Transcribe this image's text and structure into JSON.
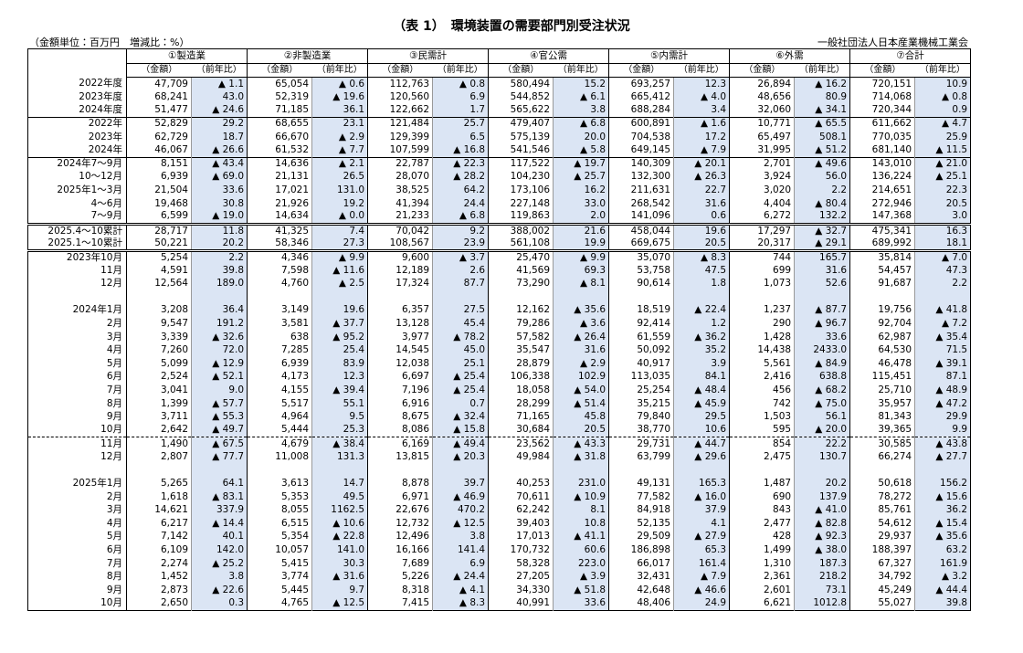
{
  "header": {
    "title": "（表 1）　環境装置の需要部門別受注状況",
    "unit_note": "（金額単位：百万円　増減比：%）",
    "publisher": "一般社団法人日本産業機械工業会"
  },
  "columns": {
    "groups": [
      "①製造業",
      "②非製造業",
      "③民需計",
      "④官公需",
      "⑤内需計",
      "⑥外需",
      "⑦合計"
    ],
    "amount": "（金額）",
    "yoy": "（前年比）"
  },
  "sections": [
    {
      "rows": [
        {
          "label": "2022年度",
          "cells": [
            "47,709",
            "▲ 1.1",
            "65,054",
            "▲ 0.6",
            "112,763",
            "▲ 0.8",
            "580,494",
            "15.2",
            "693,257",
            "12.3",
            "26,894",
            "▲ 16.2",
            "720,151",
            "10.9"
          ]
        },
        {
          "label": "2023年度",
          "cells": [
            "68,241",
            "43.0",
            "52,319",
            "▲ 19.6",
            "120,560",
            "6.9",
            "544,852",
            "▲ 6.1",
            "665,412",
            "▲ 4.0",
            "48,656",
            "80.9",
            "714,068",
            "▲ 0.8"
          ]
        },
        {
          "label": "2024年度",
          "cells": [
            "51,477",
            "▲ 24.6",
            "71,185",
            "36.1",
            "122,662",
            "1.7",
            "565,622",
            "3.8",
            "688,284",
            "3.4",
            "32,060",
            "▲ 34.1",
            "720,344",
            "0.9"
          ]
        }
      ]
    },
    {
      "rows": [
        {
          "label": "2022年",
          "cells": [
            "52,829",
            "29.2",
            "68,655",
            "23.1",
            "121,484",
            "25.7",
            "479,407",
            "▲ 6.8",
            "600,891",
            "▲ 1.6",
            "10,771",
            "▲ 65.5",
            "611,662",
            "▲ 4.7"
          ]
        },
        {
          "label": "2023年",
          "cells": [
            "62,729",
            "18.7",
            "66,670",
            "▲ 2.9",
            "129,399",
            "6.5",
            "575,139",
            "20.0",
            "704,538",
            "17.2",
            "65,497",
            "508.1",
            "770,035",
            "25.9"
          ]
        },
        {
          "label": "2024年",
          "cells": [
            "46,067",
            "▲ 26.6",
            "61,532",
            "▲ 7.7",
            "107,599",
            "▲ 16.8",
            "541,546",
            "▲ 5.8",
            "649,145",
            "▲ 7.9",
            "31,995",
            "▲ 51.2",
            "681,140",
            "▲ 11.5"
          ]
        }
      ]
    },
    {
      "rows": [
        {
          "label": "2024年7～9月",
          "cells": [
            "8,151",
            "▲ 43.4",
            "14,636",
            "▲ 2.1",
            "22,787",
            "▲ 22.3",
            "117,522",
            "▲ 19.7",
            "140,309",
            "▲ 20.1",
            "2,701",
            "▲ 49.6",
            "143,010",
            "▲ 21.0"
          ]
        },
        {
          "label": "10～12月",
          "cells": [
            "6,939",
            "▲ 69.0",
            "21,131",
            "26.5",
            "28,070",
            "▲ 28.2",
            "104,230",
            "▲ 25.7",
            "132,300",
            "▲ 26.3",
            "3,924",
            "56.0",
            "136,224",
            "▲ 25.1"
          ]
        },
        {
          "label": "2025年1～3月",
          "cells": [
            "21,504",
            "33.6",
            "17,021",
            "131.0",
            "38,525",
            "64.2",
            "173,106",
            "16.2",
            "211,631",
            "22.7",
            "3,020",
            "2.2",
            "214,651",
            "22.3"
          ]
        },
        {
          "label": "4～6月",
          "cells": [
            "19,468",
            "30.8",
            "21,926",
            "19.2",
            "41,394",
            "24.4",
            "227,148",
            "33.0",
            "268,542",
            "31.6",
            "4,404",
            "▲ 80.4",
            "272,946",
            "20.5"
          ]
        },
        {
          "label": "7～9月",
          "cells": [
            "6,599",
            "▲ 19.0",
            "14,634",
            "▲ 0.0",
            "21,233",
            "▲ 6.8",
            "119,863",
            "2.0",
            "141,096",
            "0.6",
            "6,272",
            "132.2",
            "147,368",
            "3.0"
          ]
        }
      ]
    },
    {
      "rows": [
        {
          "label": "2025.4～10累計",
          "cells": [
            "28,717",
            "11.8",
            "41,325",
            "7.4",
            "70,042",
            "9.2",
            "388,002",
            "21.6",
            "458,044",
            "19.6",
            "17,297",
            "▲ 32.7",
            "475,341",
            "16.3"
          ]
        },
        {
          "label": "2025.1～10累計",
          "cells": [
            "50,221",
            "20.2",
            "58,346",
            "27.3",
            "108,567",
            "23.9",
            "561,108",
            "19.9",
            "669,675",
            "20.5",
            "20,317",
            "▲ 29.1",
            "689,992",
            "18.1"
          ]
        }
      ]
    },
    {
      "rows": [
        {
          "label": "2023年10月",
          "cells": [
            "5,254",
            "2.2",
            "4,346",
            "▲ 9.9",
            "9,600",
            "▲ 3.7",
            "25,470",
            "▲ 9.9",
            "35,070",
            "▲ 8.3",
            "744",
            "165.7",
            "35,814",
            "▲ 7.0"
          ]
        },
        {
          "label": "11月",
          "cells": [
            "4,591",
            "39.8",
            "7,598",
            "▲ 11.6",
            "12,189",
            "2.6",
            "41,569",
            "69.3",
            "53,758",
            "47.5",
            "699",
            "31.6",
            "54,457",
            "47.3"
          ]
        },
        {
          "label": "12月",
          "cells": [
            "12,564",
            "189.0",
            "4,760",
            "▲ 2.5",
            "17,324",
            "87.7",
            "73,290",
            "▲ 8.1",
            "90,614",
            "1.8",
            "1,073",
            "52.6",
            "91,687",
            "2.2"
          ]
        }
      ]
    },
    {
      "rows": [
        {
          "label": "2024年1月",
          "cells": [
            "3,208",
            "36.4",
            "3,149",
            "19.6",
            "6,357",
            "27.5",
            "12,162",
            "▲ 35.6",
            "18,519",
            "▲ 22.4",
            "1,237",
            "▲ 87.7",
            "19,756",
            "▲ 41.8"
          ]
        },
        {
          "label": "2月",
          "cells": [
            "9,547",
            "191.2",
            "3,581",
            "▲ 37.7",
            "13,128",
            "45.4",
            "79,286",
            "▲ 3.6",
            "92,414",
            "1.2",
            "290",
            "▲ 96.7",
            "92,704",
            "▲ 7.2"
          ]
        },
        {
          "label": "3月",
          "cells": [
            "3,339",
            "▲ 32.6",
            "638",
            "▲ 95.2",
            "3,977",
            "▲ 78.2",
            "57,582",
            "▲ 26.4",
            "61,559",
            "▲ 36.2",
            "1,428",
            "33.6",
            "62,987",
            "▲ 35.4"
          ]
        },
        {
          "label": "4月",
          "cells": [
            "7,260",
            "72.0",
            "7,285",
            "25.4",
            "14,545",
            "45.0",
            "35,547",
            "31.6",
            "50,092",
            "35.2",
            "14,438",
            "2433.0",
            "64,530",
            "71.5"
          ]
        },
        {
          "label": "5月",
          "cells": [
            "5,099",
            "▲ 12.9",
            "6,939",
            "83.9",
            "12,038",
            "25.1",
            "28,879",
            "▲ 2.9",
            "40,917",
            "3.9",
            "5,561",
            "▲ 84.9",
            "46,478",
            "▲ 39.1"
          ]
        },
        {
          "label": "6月",
          "cells": [
            "2,524",
            "▲ 52.1",
            "4,173",
            "12.3",
            "6,697",
            "▲ 25.4",
            "106,338",
            "102.9",
            "113,035",
            "84.1",
            "2,416",
            "638.8",
            "115,451",
            "87.1"
          ]
        },
        {
          "label": "7月",
          "cells": [
            "3,041",
            "9.0",
            "4,155",
            "▲ 39.4",
            "7,196",
            "▲ 25.4",
            "18,058",
            "▲ 54.0",
            "25,254",
            "▲ 48.4",
            "456",
            "▲ 68.2",
            "25,710",
            "▲ 48.9"
          ]
        },
        {
          "label": "8月",
          "cells": [
            "1,399",
            "▲ 57.7",
            "5,517",
            "55.1",
            "6,916",
            "0.7",
            "28,299",
            "▲ 51.4",
            "35,215",
            "▲ 45.9",
            "742",
            "▲ 75.0",
            "35,957",
            "▲ 47.2"
          ]
        },
        {
          "label": "9月",
          "cells": [
            "3,711",
            "▲ 55.3",
            "4,964",
            "9.5",
            "8,675",
            "▲ 32.4",
            "71,165",
            "45.8",
            "79,840",
            "29.5",
            "1,503",
            "56.1",
            "81,343",
            "29.9"
          ]
        },
        {
          "label": "10月",
          "cells": [
            "2,642",
            "▲ 49.7",
            "5,444",
            "25.3",
            "8,086",
            "▲ 15.8",
            "30,684",
            "20.5",
            "38,770",
            "10.6",
            "595",
            "▲ 20.0",
            "39,365",
            "9.9"
          ]
        }
      ]
    },
    {
      "rows": [
        {
          "label": "11月",
          "cells": [
            "1,490",
            "▲ 67.5",
            "4,679",
            "▲ 38.4",
            "6,169",
            "▲ 49.4",
            "23,562",
            "▲ 43.3",
            "29,731",
            "▲ 44.7",
            "854",
            "22.2",
            "30,585",
            "▲ 43.8"
          ]
        },
        {
          "label": "12月",
          "cells": [
            "2,807",
            "▲ 77.7",
            "11,008",
            "131.3",
            "13,815",
            "▲ 20.3",
            "49,984",
            "▲ 31.8",
            "63,799",
            "▲ 29.6",
            "2,475",
            "130.7",
            "66,274",
            "▲ 27.7"
          ]
        }
      ]
    },
    {
      "rows": [
        {
          "label": "2025年1月",
          "cells": [
            "5,265",
            "64.1",
            "3,613",
            "14.7",
            "8,878",
            "39.7",
            "40,253",
            "231.0",
            "49,131",
            "165.3",
            "1,487",
            "20.2",
            "50,618",
            "156.2"
          ]
        },
        {
          "label": "2月",
          "cells": [
            "1,618",
            "▲ 83.1",
            "5,353",
            "49.5",
            "6,971",
            "▲ 46.9",
            "70,611",
            "▲ 10.9",
            "77,582",
            "▲ 16.0",
            "690",
            "137.9",
            "78,272",
            "▲ 15.6"
          ]
        },
        {
          "label": "3月",
          "cells": [
            "14,621",
            "337.9",
            "8,055",
            "1162.5",
            "22,676",
            "470.2",
            "62,242",
            "8.1",
            "84,918",
            "37.9",
            "843",
            "▲ 41.0",
            "85,761",
            "36.2"
          ]
        },
        {
          "label": "4月",
          "cells": [
            "6,217",
            "▲ 14.4",
            "6,515",
            "▲ 10.6",
            "12,732",
            "▲ 12.5",
            "39,403",
            "10.8",
            "52,135",
            "4.1",
            "2,477",
            "▲ 82.8",
            "54,612",
            "▲ 15.4"
          ]
        },
        {
          "label": "5月",
          "cells": [
            "7,142",
            "40.1",
            "5,354",
            "▲ 22.8",
            "12,496",
            "3.8",
            "17,013",
            "▲ 41.1",
            "29,509",
            "▲ 27.9",
            "428",
            "▲ 92.3",
            "29,937",
            "▲ 35.6"
          ]
        },
        {
          "label": "6月",
          "cells": [
            "6,109",
            "142.0",
            "10,057",
            "141.0",
            "16,166",
            "141.4",
            "170,732",
            "60.6",
            "186,898",
            "65.3",
            "1,499",
            "▲ 38.0",
            "188,397",
            "63.2"
          ]
        },
        {
          "label": "7月",
          "cells": [
            "2,274",
            "▲ 25.2",
            "5,415",
            "30.3",
            "7,689",
            "6.9",
            "58,328",
            "223.0",
            "66,017",
            "161.4",
            "1,310",
            "187.3",
            "67,327",
            "161.9"
          ]
        },
        {
          "label": "8月",
          "cells": [
            "1,452",
            "3.8",
            "3,774",
            "▲ 31.6",
            "5,226",
            "▲ 24.4",
            "27,205",
            "▲ 3.9",
            "32,431",
            "▲ 7.9",
            "2,361",
            "218.2",
            "34,792",
            "▲ 3.2"
          ]
        },
        {
          "label": "9月",
          "cells": [
            "2,873",
            "▲ 22.6",
            "5,445",
            "9.7",
            "8,318",
            "▲ 4.1",
            "34,330",
            "▲ 51.8",
            "42,648",
            "▲ 46.6",
            "2,601",
            "73.1",
            "45,249",
            "▲ 44.4"
          ]
        },
        {
          "label": "10月",
          "cells": [
            "2,650",
            "0.3",
            "4,765",
            "▲ 12.5",
            "7,415",
            "▲ 8.3",
            "40,991",
            "33.6",
            "48,406",
            "24.9",
            "6,621",
            "1012.8",
            "55,027",
            "39.8"
          ]
        }
      ]
    }
  ]
}
